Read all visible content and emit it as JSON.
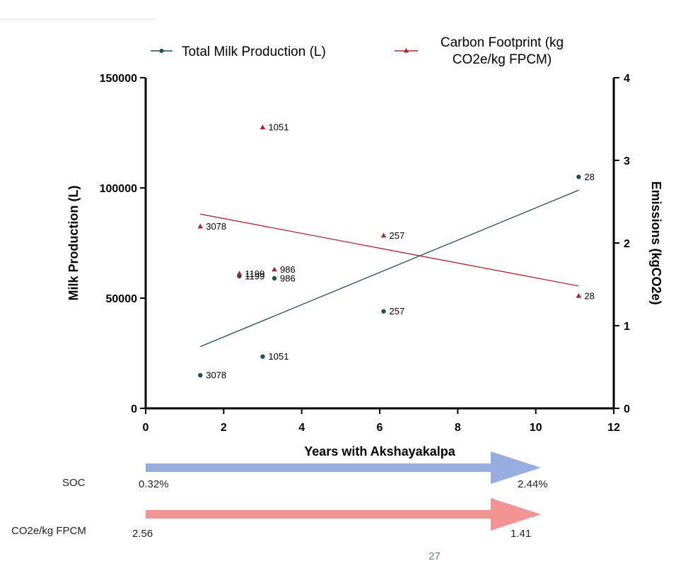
{
  "chart_data": {
    "type": "line",
    "title": "",
    "xlabel": "Years with Akshayakalpa",
    "ylabel_left": "Milk Production (L)",
    "ylabel_right": "Emissions (kgCO2e)",
    "xlim": [
      0,
      12
    ],
    "ylim_left": [
      0,
      150000
    ],
    "ylim_right": [
      0,
      4
    ],
    "x_ticks": [
      "0",
      "2",
      "4",
      "6",
      "8",
      "10",
      "12"
    ],
    "y_left_ticks": [
      "0",
      "50000",
      "100000",
      "150000"
    ],
    "y_right_ticks": [
      "0",
      "1",
      "2",
      "3",
      "4"
    ],
    "legend_position": "top",
    "series": [
      {
        "name": "Total Milk Production (L)",
        "axis": "left",
        "color": "#1f4e5f",
        "marker": "circle",
        "points": [
          {
            "x": 1.4,
            "y": 15000,
            "label": "3078"
          },
          {
            "x": 2.4,
            "y": 60000,
            "label": "1199"
          },
          {
            "x": 3.0,
            "y": 23500,
            "label": "1051"
          },
          {
            "x": 3.3,
            "y": 59000,
            "label": "986"
          },
          {
            "x": 6.1,
            "y": 44000,
            "label": "257"
          },
          {
            "x": 11.1,
            "y": 105000,
            "label": "28"
          }
        ],
        "trend": {
          "x": [
            1.4,
            11.1
          ],
          "y": [
            28000,
            99000
          ]
        }
      },
      {
        "name": "Carbon Footprint (kg CO2e/kg FPCM)",
        "name_lines": [
          "Carbon Footprint (kg",
          "CO2e/kg FPCM)"
        ],
        "axis": "right",
        "color": "#a52a2a",
        "marker": "triangle",
        "points": [
          {
            "x": 1.4,
            "y": 2.2,
            "label": "3078"
          },
          {
            "x": 2.4,
            "y": 1.63,
            "label": "1199"
          },
          {
            "x": 3.0,
            "y": 3.4,
            "label": "1051"
          },
          {
            "x": 3.3,
            "y": 1.68,
            "label": "986"
          },
          {
            "x": 6.1,
            "y": 2.09,
            "label": "257"
          },
          {
            "x": 11.1,
            "y": 1.36,
            "label": "28"
          }
        ],
        "trend": {
          "x": [
            1.4,
            11.1
          ],
          "y": [
            2.35,
            1.48
          ]
        }
      }
    ],
    "arrows": [
      {
        "label": "SOC",
        "start_value": "0.32%",
        "end_value": "2.44%",
        "color": "#97acdf"
      },
      {
        "label": "CO2e/kg FPCM",
        "start_value": "2.56",
        "end_value": "1.41",
        "color": "#f39494"
      }
    ]
  },
  "slide_number": "27"
}
